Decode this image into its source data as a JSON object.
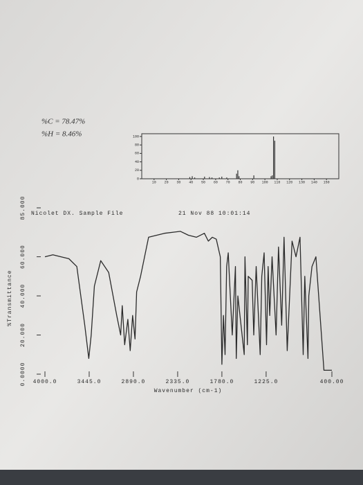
{
  "notes": {
    "carbon": "%C = 78.47%",
    "hydrogen": "%H = 8.46%"
  },
  "chart_data": [
    {
      "type": "bar",
      "color": "#333333",
      "x": [
        39,
        41,
        43,
        51,
        55,
        57,
        63,
        65,
        69,
        77,
        78,
        79,
        91,
        105,
        106,
        107,
        108
      ],
      "values": [
        4,
        6,
        3,
        5,
        4,
        3,
        3,
        5,
        3,
        12,
        20,
        6,
        8,
        6,
        8,
        100,
        90
      ],
      "xlim": [
        0,
        160
      ],
      "xticks": [
        10,
        20,
        30,
        40,
        50,
        60,
        70,
        80,
        90,
        100,
        110,
        120,
        130,
        140,
        150
      ],
      "ylim": [
        0,
        100
      ],
      "yticks": [
        0,
        20,
        40,
        60,
        80,
        100
      ]
    },
    {
      "type": "line",
      "color": "#2a2a2a",
      "header": "Nicolet DX. Sample File",
      "date": "21 Nov 88 10:01:14",
      "xlabel": "Wavenumber (cm-1)",
      "ylabel": "%Transmittance",
      "x": [
        4000,
        3900,
        3800,
        3700,
        3600,
        3500,
        3450,
        3420,
        3380,
        3300,
        3200,
        3100,
        3050,
        3030,
        3000,
        2960,
        2930,
        2900,
        2870,
        2850,
        2800,
        2700,
        2500,
        2300,
        2200,
        2100,
        2000,
        1950,
        1900,
        1850,
        1800,
        1780,
        1760,
        1740,
        1720,
        1700,
        1680,
        1650,
        1610,
        1600,
        1580,
        1500,
        1490,
        1460,
        1450,
        1400,
        1380,
        1350,
        1300,
        1280,
        1250,
        1220,
        1200,
        1180,
        1150,
        1100,
        1070,
        1030,
        1000,
        960,
        900,
        850,
        800,
        760,
        740,
        700,
        690,
        650,
        600,
        500,
        400
      ],
      "values": [
        60,
        61,
        60,
        59,
        55,
        25,
        8,
        20,
        45,
        58,
        52,
        30,
        20,
        35,
        15,
        28,
        12,
        30,
        18,
        42,
        50,
        70,
        72,
        73,
        71,
        70,
        72,
        68,
        70,
        69,
        60,
        5,
        30,
        10,
        55,
        62,
        45,
        20,
        55,
        8,
        40,
        10,
        60,
        15,
        50,
        48,
        20,
        55,
        10,
        50,
        62,
        15,
        55,
        30,
        60,
        20,
        65,
        25,
        70,
        12,
        68,
        60,
        70,
        10,
        50,
        8,
        40,
        55,
        60,
        2,
        2
      ],
      "xlim": [
        4000,
        400
      ],
      "xticks": [
        {
          "value": 4000,
          "label": "4000.0"
        },
        {
          "value": 3445,
          "label": "3445.0"
        },
        {
          "value": 2890,
          "label": "2890.0"
        },
        {
          "value": 2335,
          "label": "2335.0"
        },
        {
          "value": 1780,
          "label": "1780.0"
        },
        {
          "value": 1225,
          "label": "1225.0"
        },
        {
          "value": 400,
          "label": "400.00"
        }
      ],
      "ylim": [
        0,
        85
      ],
      "yticks": [
        {
          "value": 0,
          "label": "0.0000"
        },
        {
          "value": 20,
          "label": "20.000"
        },
        {
          "value": 40,
          "label": "40.000"
        },
        {
          "value": 60,
          "label": "60.000"
        },
        {
          "value": 85,
          "label": "85.000"
        }
      ]
    }
  ]
}
